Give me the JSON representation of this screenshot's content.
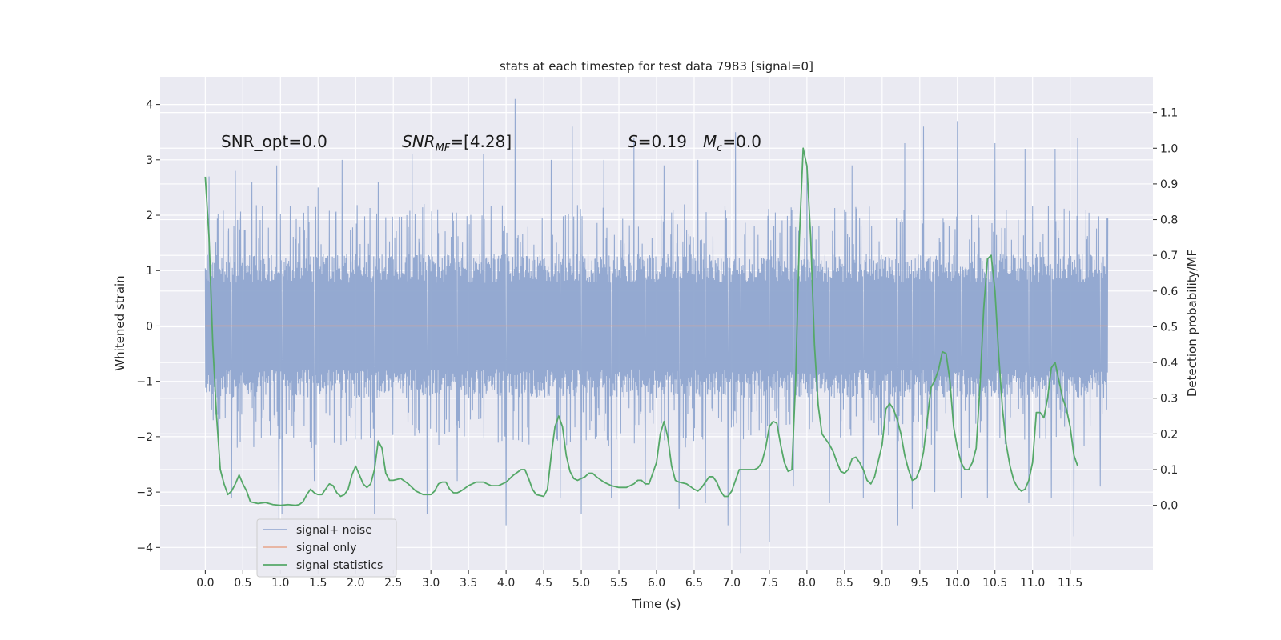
{
  "chart_data": {
    "type": "line",
    "title": "stats at each timestep for test data 7983 [signal=0]",
    "xlabel": "Time (s)",
    "ylabel": "Whitened strain",
    "y2label": "Detection probability/MF",
    "xlim": [
      -0.6,
      12.6
    ],
    "ylim": [
      -4.4,
      4.5
    ],
    "y2lim": [
      -0.18,
      1.2
    ],
    "x_ticks": [
      "0.0",
      "0.5",
      "1.0",
      "1.5",
      "2.0",
      "2.5",
      "3.0",
      "3.5",
      "4.0",
      "4.5",
      "5.0",
      "5.5",
      "6.0",
      "6.5",
      "7.0",
      "7.5",
      "8.0",
      "8.5",
      "9.0",
      "9.5",
      "10.0",
      "10.5",
      "11.0",
      "11.5"
    ],
    "y_ticks": [
      "4",
      "3",
      "2",
      "1",
      "0",
      "−1",
      "−2",
      "−3",
      "−4"
    ],
    "y2_ticks": [
      "1.1",
      "1.0",
      "0.9",
      "0.8",
      "0.7",
      "0.6",
      "0.5",
      "0.4",
      "0.3",
      "0.2",
      "0.1",
      "0.0"
    ],
    "grid": true,
    "legend_placement": "lower-left",
    "annotations": {
      "snr_opt": "SNR_opt=0.0",
      "snr_mf_main": "SNR",
      "snr_mf_sub": "MF",
      "snr_mf_rest": "=[4.28]",
      "s_main": "S",
      "s_rest": "=0.19",
      "mc_main": "M",
      "mc_sub": "c",
      "mc_rest": "=0.0"
    },
    "series": [
      {
        "name": "signal+ noise",
        "color": "#8fa5cf",
        "x_range": [
          0.0,
          12.0
        ],
        "band_core": [
          -1.3,
          1.3
        ],
        "band_typical": [
          -2.1,
          2.1
        ],
        "peaks_up": [
          [
            0.05,
            2.7
          ],
          [
            0.4,
            2.8
          ],
          [
            0.62,
            2.6
          ],
          [
            0.95,
            2.9
          ],
          [
            1.5,
            2.5
          ],
          [
            1.82,
            3.0
          ],
          [
            2.3,
            2.6
          ],
          [
            2.75,
            3.1
          ],
          [
            3.35,
            3.2
          ],
          [
            3.7,
            3.1
          ],
          [
            4.12,
            4.1
          ],
          [
            4.6,
            3.0
          ],
          [
            4.88,
            3.6
          ],
          [
            5.3,
            3.0
          ],
          [
            5.7,
            3.4
          ],
          [
            6.1,
            2.9
          ],
          [
            6.55,
            3.0
          ],
          [
            7.05,
            3.5
          ],
          [
            7.5,
            3.0
          ],
          [
            8.0,
            2.9
          ],
          [
            8.6,
            2.9
          ],
          [
            9.3,
            3.3
          ],
          [
            9.55,
            3.6
          ],
          [
            10.0,
            3.7
          ],
          [
            10.5,
            3.3
          ],
          [
            10.9,
            3.2
          ],
          [
            11.3,
            3.2
          ],
          [
            11.6,
            3.4
          ],
          [
            11.9,
            2.2
          ]
        ],
        "peaks_down": [
          [
            0.35,
            -3.1
          ],
          [
            0.98,
            -3.5
          ],
          [
            1.02,
            -3.4
          ],
          [
            1.45,
            -2.8
          ],
          [
            2.25,
            -3.4
          ],
          [
            2.95,
            -3.4
          ],
          [
            3.35,
            -2.8
          ],
          [
            4.0,
            -3.6
          ],
          [
            4.72,
            -3.1
          ],
          [
            5.0,
            -3.4
          ],
          [
            5.4,
            -3.1
          ],
          [
            5.85,
            -2.9
          ],
          [
            6.3,
            -3.3
          ],
          [
            6.65,
            -3.2
          ],
          [
            6.95,
            -3.6
          ],
          [
            7.12,
            -4.1
          ],
          [
            7.5,
            -3.9
          ],
          [
            7.82,
            -2.9
          ],
          [
            8.3,
            -3.2
          ],
          [
            8.75,
            -3.1
          ],
          [
            9.2,
            -3.6
          ],
          [
            9.4,
            -3.3
          ],
          [
            9.7,
            -3.0
          ],
          [
            10.05,
            -3.1
          ],
          [
            10.4,
            -3.1
          ],
          [
            10.95,
            -3.2
          ],
          [
            11.25,
            -3.1
          ],
          [
            11.55,
            -3.8
          ],
          [
            11.9,
            -2.9
          ]
        ]
      },
      {
        "name": "signal only",
        "color": "#e8a58a",
        "x": [
          0.0,
          12.0
        ],
        "y": [
          0.0,
          0.0
        ]
      },
      {
        "name": "signal statistics",
        "color": "#55a868",
        "axis": "right",
        "points": [
          [
            0.0,
            0.92
          ],
          [
            0.05,
            0.75
          ],
          [
            0.1,
            0.45
          ],
          [
            0.15,
            0.25
          ],
          [
            0.2,
            0.1
          ],
          [
            0.25,
            0.06
          ],
          [
            0.3,
            0.03
          ],
          [
            0.35,
            0.04
          ],
          [
            0.4,
            0.06
          ],
          [
            0.45,
            0.085
          ],
          [
            0.5,
            0.06
          ],
          [
            0.55,
            0.04
          ],
          [
            0.6,
            0.01
          ],
          [
            0.7,
            0.005
          ],
          [
            0.8,
            0.008
          ],
          [
            0.9,
            0.002
          ],
          [
            1.0,
            0.0
          ],
          [
            1.1,
            0.002
          ],
          [
            1.2,
            0.0
          ],
          [
            1.25,
            0.002
          ],
          [
            1.3,
            0.01
          ],
          [
            1.35,
            0.03
          ],
          [
            1.4,
            0.045
          ],
          [
            1.45,
            0.035
          ],
          [
            1.5,
            0.03
          ],
          [
            1.55,
            0.03
          ],
          [
            1.6,
            0.045
          ],
          [
            1.65,
            0.06
          ],
          [
            1.7,
            0.055
          ],
          [
            1.75,
            0.035
          ],
          [
            1.8,
            0.025
          ],
          [
            1.85,
            0.03
          ],
          [
            1.9,
            0.045
          ],
          [
            1.95,
            0.085
          ],
          [
            2.0,
            0.11
          ],
          [
            2.05,
            0.085
          ],
          [
            2.1,
            0.06
          ],
          [
            2.15,
            0.05
          ],
          [
            2.2,
            0.06
          ],
          [
            2.25,
            0.1
          ],
          [
            2.3,
            0.18
          ],
          [
            2.35,
            0.16
          ],
          [
            2.4,
            0.09
          ],
          [
            2.45,
            0.07
          ],
          [
            2.5,
            0.07
          ],
          [
            2.6,
            0.075
          ],
          [
            2.7,
            0.06
          ],
          [
            2.8,
            0.04
          ],
          [
            2.9,
            0.03
          ],
          [
            3.0,
            0.03
          ],
          [
            3.05,
            0.04
          ],
          [
            3.1,
            0.06
          ],
          [
            3.15,
            0.065
          ],
          [
            3.2,
            0.065
          ],
          [
            3.25,
            0.045
          ],
          [
            3.3,
            0.035
          ],
          [
            3.35,
            0.035
          ],
          [
            3.4,
            0.04
          ],
          [
            3.5,
            0.055
          ],
          [
            3.6,
            0.065
          ],
          [
            3.7,
            0.065
          ],
          [
            3.8,
            0.055
          ],
          [
            3.9,
            0.055
          ],
          [
            4.0,
            0.065
          ],
          [
            4.1,
            0.085
          ],
          [
            4.2,
            0.1
          ],
          [
            4.25,
            0.1
          ],
          [
            4.3,
            0.075
          ],
          [
            4.35,
            0.045
          ],
          [
            4.4,
            0.03
          ],
          [
            4.5,
            0.025
          ],
          [
            4.55,
            0.045
          ],
          [
            4.6,
            0.14
          ],
          [
            4.65,
            0.22
          ],
          [
            4.7,
            0.25
          ],
          [
            4.75,
            0.22
          ],
          [
            4.8,
            0.14
          ],
          [
            4.85,
            0.095
          ],
          [
            4.9,
            0.075
          ],
          [
            4.95,
            0.07
          ],
          [
            5.0,
            0.075
          ],
          [
            5.05,
            0.08
          ],
          [
            5.1,
            0.09
          ],
          [
            5.15,
            0.09
          ],
          [
            5.2,
            0.08
          ],
          [
            5.3,
            0.065
          ],
          [
            5.4,
            0.055
          ],
          [
            5.5,
            0.05
          ],
          [
            5.6,
            0.05
          ],
          [
            5.7,
            0.06
          ],
          [
            5.75,
            0.07
          ],
          [
            5.8,
            0.07
          ],
          [
            5.85,
            0.06
          ],
          [
            5.9,
            0.06
          ],
          [
            6.0,
            0.12
          ],
          [
            6.05,
            0.2
          ],
          [
            6.1,
            0.235
          ],
          [
            6.15,
            0.19
          ],
          [
            6.2,
            0.11
          ],
          [
            6.25,
            0.07
          ],
          [
            6.3,
            0.065
          ],
          [
            6.4,
            0.06
          ],
          [
            6.5,
            0.045
          ],
          [
            6.55,
            0.04
          ],
          [
            6.6,
            0.05
          ],
          [
            6.7,
            0.08
          ],
          [
            6.75,
            0.08
          ],
          [
            6.8,
            0.065
          ],
          [
            6.85,
            0.04
          ],
          [
            6.9,
            0.025
          ],
          [
            6.95,
            0.025
          ],
          [
            7.0,
            0.04
          ],
          [
            7.05,
            0.07
          ],
          [
            7.1,
            0.1
          ],
          [
            7.2,
            0.1
          ],
          [
            7.3,
            0.1
          ],
          [
            7.35,
            0.105
          ],
          [
            7.4,
            0.12
          ],
          [
            7.45,
            0.16
          ],
          [
            7.5,
            0.22
          ],
          [
            7.55,
            0.235
          ],
          [
            7.6,
            0.23
          ],
          [
            7.65,
            0.17
          ],
          [
            7.7,
            0.12
          ],
          [
            7.75,
            0.095
          ],
          [
            7.8,
            0.1
          ],
          [
            7.85,
            0.35
          ],
          [
            7.9,
            0.75
          ],
          [
            7.95,
            1.0
          ],
          [
            8.0,
            0.95
          ],
          [
            8.05,
            0.75
          ],
          [
            8.1,
            0.45
          ],
          [
            8.15,
            0.28
          ],
          [
            8.2,
            0.2
          ],
          [
            8.3,
            0.17
          ],
          [
            8.35,
            0.15
          ],
          [
            8.4,
            0.12
          ],
          [
            8.45,
            0.095
          ],
          [
            8.5,
            0.09
          ],
          [
            8.55,
            0.1
          ],
          [
            8.6,
            0.13
          ],
          [
            8.65,
            0.135
          ],
          [
            8.7,
            0.12
          ],
          [
            8.75,
            0.1
          ],
          [
            8.8,
            0.07
          ],
          [
            8.85,
            0.06
          ],
          [
            8.9,
            0.08
          ],
          [
            9.0,
            0.17
          ],
          [
            9.05,
            0.27
          ],
          [
            9.1,
            0.285
          ],
          [
            9.15,
            0.27
          ],
          [
            9.2,
            0.24
          ],
          [
            9.25,
            0.2
          ],
          [
            9.3,
            0.14
          ],
          [
            9.35,
            0.1
          ],
          [
            9.4,
            0.07
          ],
          [
            9.45,
            0.075
          ],
          [
            9.5,
            0.1
          ],
          [
            9.55,
            0.15
          ],
          [
            9.6,
            0.24
          ],
          [
            9.65,
            0.33
          ],
          [
            9.7,
            0.35
          ],
          [
            9.75,
            0.38
          ],
          [
            9.8,
            0.43
          ],
          [
            9.85,
            0.425
          ],
          [
            9.9,
            0.35
          ],
          [
            9.95,
            0.22
          ],
          [
            10.0,
            0.16
          ],
          [
            10.05,
            0.12
          ],
          [
            10.1,
            0.1
          ],
          [
            10.15,
            0.1
          ],
          [
            10.2,
            0.12
          ],
          [
            10.25,
            0.16
          ],
          [
            10.3,
            0.33
          ],
          [
            10.35,
            0.55
          ],
          [
            10.4,
            0.69
          ],
          [
            10.45,
            0.7
          ],
          [
            10.5,
            0.6
          ],
          [
            10.55,
            0.42
          ],
          [
            10.6,
            0.27
          ],
          [
            10.65,
            0.17
          ],
          [
            10.7,
            0.11
          ],
          [
            10.75,
            0.07
          ],
          [
            10.8,
            0.05
          ],
          [
            10.85,
            0.04
          ],
          [
            10.9,
            0.045
          ],
          [
            10.95,
            0.07
          ],
          [
            11.0,
            0.12
          ],
          [
            11.05,
            0.26
          ],
          [
            11.1,
            0.26
          ],
          [
            11.15,
            0.245
          ],
          [
            11.2,
            0.3
          ],
          [
            11.25,
            0.385
          ],
          [
            11.3,
            0.4
          ],
          [
            11.35,
            0.35
          ],
          [
            11.4,
            0.3
          ],
          [
            11.45,
            0.27
          ],
          [
            11.5,
            0.22
          ],
          [
            11.55,
            0.14
          ],
          [
            11.6,
            0.11
          ]
        ]
      }
    ]
  }
}
